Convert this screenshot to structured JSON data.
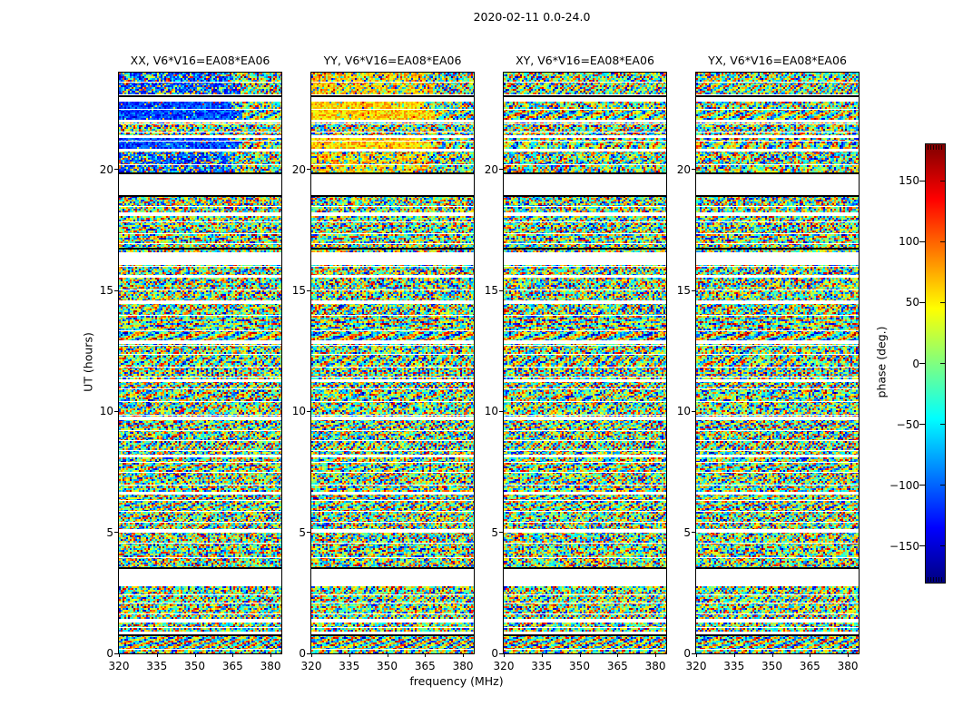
{
  "figure": {
    "title": "2020-02-11 0.0-24.0",
    "xlabel": "frequency (MHz)",
    "ylabel": "UT (hours)",
    "colorbar_label": "phase (deg.)"
  },
  "chart_data": {
    "type": "heatmap",
    "title": "2020-02-11 0.0-24.0",
    "xlabel": "frequency (MHz)",
    "ylabel": "UT (hours)",
    "x_range": [
      320,
      384.3
    ],
    "y_range": [
      0,
      24
    ],
    "x_ticks": [
      320,
      335,
      350,
      365,
      380
    ],
    "x_tick_labels": [
      "320",
      "335",
      "350",
      "365",
      "380"
    ],
    "y_ticks": [
      0,
      5,
      10,
      15,
      20
    ],
    "y_tick_labels": [
      "0",
      "5",
      "10",
      "15",
      "20"
    ],
    "colormap": "jet",
    "colormap_stops": [
      [
        "#000080",
        0
      ],
      [
        "#0000ff",
        0.125
      ],
      [
        "#00ffff",
        0.375
      ],
      [
        "#ffff00",
        0.625
      ],
      [
        "#ff0000",
        0.875
      ],
      [
        "#800000",
        1
      ]
    ],
    "colorbar": {
      "label": "phase (deg.)",
      "range": [
        -180,
        180
      ],
      "ticks": [
        150,
        100,
        50,
        0,
        -50,
        -100,
        -150
      ],
      "tick_labels": [
        "150",
        "100",
        "50",
        "0",
        "−50",
        "−100",
        "−150"
      ]
    },
    "panels": [
      {
        "label": "XX, V6*V16=EA08*EA06",
        "pol": "XX",
        "streak_color": "blue",
        "streak_phase_deg": -112
      },
      {
        "label": "YY, V6*V16=EA08*EA06",
        "pol": "YY",
        "streak_color": "yellow",
        "streak_phase_deg": 62
      },
      {
        "label": "XY, V6*V16=EA08*EA06",
        "pol": "XY",
        "streak_color": null,
        "streak_phase_deg": null
      },
      {
        "label": "YX, V6*V16=EA08*EA06",
        "pol": "YX",
        "streak_color": null,
        "streak_phase_deg": null
      }
    ],
    "no_data_gaps_hours": [
      [
        22.84,
        23.04
      ],
      [
        21.98,
        22.06
      ],
      [
        21.33,
        21.42
      ],
      [
        20.77,
        20.86
      ],
      [
        18.97,
        19.84
      ],
      [
        18.11,
        18.23
      ],
      [
        16.09,
        16.57
      ],
      [
        15.55,
        15.64
      ],
      [
        14.5,
        14.6
      ],
      [
        12.84,
        12.92
      ],
      [
        11.24,
        11.32
      ],
      [
        9.69,
        9.77
      ],
      [
        8.14,
        8.22
      ],
      [
        6.59,
        6.67
      ],
      [
        5.04,
        5.12
      ],
      [
        2.85,
        3.56
      ],
      [
        1.3,
        1.42
      ],
      [
        0.82,
        0.9
      ]
    ],
    "scan_edge_lines_hours": [
      23.06,
      19.86,
      18.95,
      16.76,
      3.58,
      0.8
    ],
    "coherent_streak_bands_hours": [
      {
        "from": 22.06,
        "to": 22.84,
        "partial": false
      },
      {
        "from": 20.86,
        "to": 21.33,
        "partial": false
      },
      {
        "from": 19.86,
        "to": 20.77,
        "partial": true
      },
      {
        "from": 23.06,
        "to": 24.0,
        "partial": true
      }
    ],
    "content_note": "Per-baseline visibility phase waterfall (random wrapped-phase noise with fringe moire); white bands = no data."
  }
}
